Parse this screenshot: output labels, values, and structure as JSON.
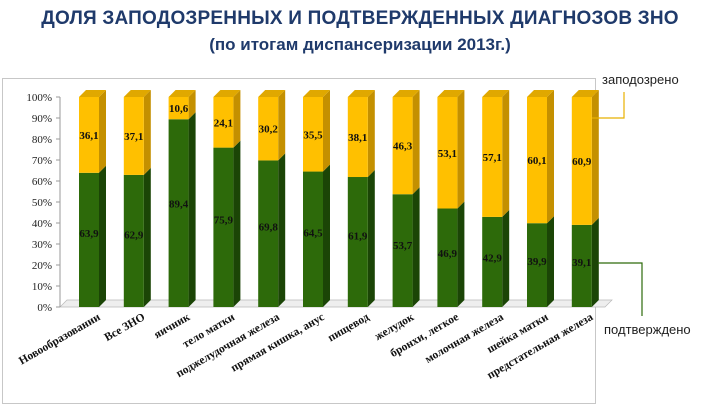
{
  "header": {
    "title": "ДОЛЯ ЗАПОДОЗРЕННЫХ И ПОДТВЕРЖДЕННЫХ ДИАГНОЗОВ ЗНО",
    "subtitle": "(по итогам диспансеризации 2013г.)"
  },
  "legend": {
    "suspected": "заподозрено",
    "confirmed": "подтверждено"
  },
  "colors": {
    "confirmed": "#2d6a0a",
    "confirmed_side": "#1b4506",
    "suspected": "#ffc000",
    "suspected_side": "#c49000",
    "legend_suspected_line": "#e8b000",
    "legend_confirmed_line": "#2d6a0a"
  },
  "chart_data": {
    "type": "bar",
    "stacked": true,
    "percent": true,
    "categories": [
      "Новообразовании",
      "Все ЗНО",
      "яичник",
      "тело матки",
      "поджелудочная железа",
      "прямая кишка, анус",
      "пищевод",
      "желудок",
      "бронхи, легкое",
      "молочная железа",
      "шейка матки",
      "предстательная железа"
    ],
    "series": [
      {
        "name": "подтверждено",
        "values": [
          63.9,
          62.9,
          89.4,
          75.9,
          69.8,
          64.5,
          61.9,
          53.7,
          46.9,
          42.9,
          39.9,
          39.1
        ],
        "labels": [
          "63,9",
          "62,9",
          "89,4",
          "75,9",
          "69,8",
          "64,5",
          "61,9",
          "53,7",
          "46,9",
          "42,9",
          "39,9",
          "39,1"
        ]
      },
      {
        "name": "заподозрено",
        "values": [
          36.1,
          37.1,
          10.6,
          24.1,
          30.2,
          35.5,
          38.1,
          46.3,
          53.1,
          57.1,
          60.1,
          60.9
        ],
        "labels": [
          "36,1",
          "37,1",
          "10,6",
          "24,1",
          "30,2",
          "35,5",
          "38,1",
          "46,3",
          "53,1",
          "57,1",
          "60,1",
          "60,9"
        ]
      }
    ],
    "yticks": [
      "0%",
      "10%",
      "20%",
      "30%",
      "40%",
      "50%",
      "60%",
      "70%",
      "80%",
      "90%",
      "100%"
    ],
    "ylim": [
      0,
      100
    ],
    "grid": false,
    "legend_position": "right"
  }
}
